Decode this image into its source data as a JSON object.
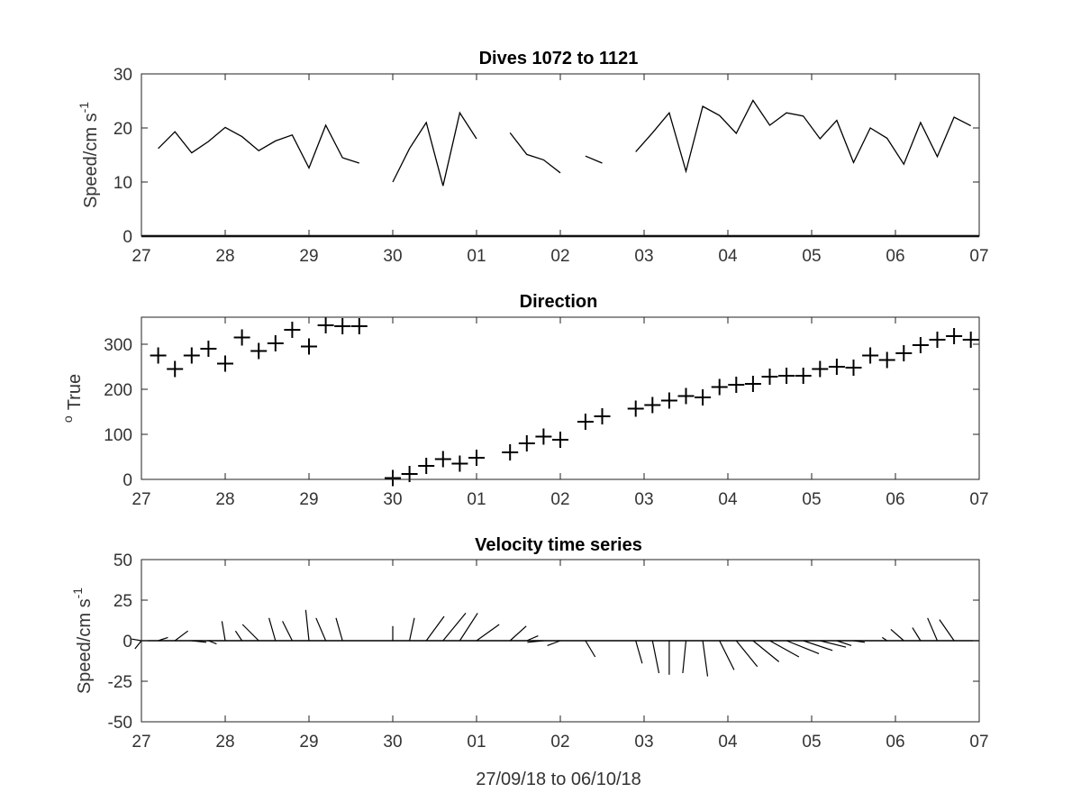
{
  "chart_data": [
    {
      "type": "line",
      "title": "Dives 1072 to 1121",
      "ylabel_main": "Speed/cm s",
      "ylabel_sup": "-1",
      "xlabel": "",
      "ylim": [
        0,
        30
      ],
      "yticks": [
        0,
        10,
        20,
        30
      ],
      "xlim": [
        0,
        10
      ],
      "xticks": [
        0,
        1,
        2,
        3,
        4,
        5,
        6,
        7,
        8,
        9,
        10
      ],
      "xtick_labels": [
        "27",
        "28",
        "29",
        "30",
        "01",
        "02",
        "03",
        "04",
        "05",
        "06",
        "07"
      ],
      "segments": [
        [
          [
            0.2,
            16.2
          ],
          [
            0.4,
            19.3
          ],
          [
            0.6,
            15.4
          ],
          [
            0.8,
            17.5
          ],
          [
            1.0,
            20.1
          ],
          [
            1.2,
            18.4
          ],
          [
            1.4,
            15.8
          ],
          [
            1.6,
            17.6
          ],
          [
            1.8,
            18.7
          ],
          [
            2.0,
            12.6
          ],
          [
            2.2,
            20.5
          ],
          [
            2.4,
            14.5
          ],
          [
            2.6,
            13.5
          ]
        ],
        [
          [
            3.0,
            10.0
          ],
          [
            3.2,
            16.2
          ],
          [
            3.4,
            21.0
          ],
          [
            3.6,
            9.3
          ],
          [
            3.8,
            22.8
          ],
          [
            4.0,
            18.0
          ]
        ],
        [
          [
            4.4,
            19.1
          ],
          [
            4.6,
            15.1
          ],
          [
            4.8,
            14.1
          ],
          [
            5.0,
            11.7
          ]
        ],
        [
          [
            5.3,
            14.8
          ],
          [
            5.5,
            13.5
          ]
        ],
        [
          [
            5.9,
            15.6
          ],
          [
            6.1,
            19.1
          ],
          [
            6.3,
            22.8
          ],
          [
            6.5,
            12.0
          ],
          [
            6.7,
            24.0
          ],
          [
            6.9,
            22.3
          ],
          [
            7.1,
            19.0
          ],
          [
            7.3,
            25.1
          ],
          [
            7.5,
            20.5
          ],
          [
            7.7,
            22.8
          ],
          [
            7.9,
            22.2
          ],
          [
            8.1,
            18.0
          ],
          [
            8.3,
            21.4
          ],
          [
            8.5,
            13.6
          ],
          [
            8.7,
            20.0
          ],
          [
            8.9,
            18.1
          ],
          [
            9.1,
            13.3
          ],
          [
            9.3,
            21.0
          ],
          [
            9.5,
            14.7
          ],
          [
            9.7,
            22.0
          ],
          [
            9.9,
            20.4
          ]
        ]
      ]
    },
    {
      "type": "scatter",
      "title": "Direction",
      "ylabel_main": "True",
      "ylabel_sup": "o",
      "xlabel": "",
      "ylim": [
        0,
        360
      ],
      "yticks": [
        0,
        100,
        200,
        300
      ],
      "xlim": [
        0,
        10
      ],
      "xticks": [
        0,
        1,
        2,
        3,
        4,
        5,
        6,
        7,
        8,
        9,
        10
      ],
      "xtick_labels": [
        "27",
        "28",
        "29",
        "30",
        "01",
        "02",
        "03",
        "04",
        "05",
        "06",
        "07"
      ],
      "marker": "+",
      "points": [
        [
          0.2,
          275
        ],
        [
          0.4,
          245
        ],
        [
          0.6,
          275
        ],
        [
          0.8,
          290
        ],
        [
          1.0,
          257
        ],
        [
          1.2,
          315
        ],
        [
          1.4,
          285
        ],
        [
          1.6,
          302
        ],
        [
          1.8,
          332
        ],
        [
          2.0,
          295
        ],
        [
          2.2,
          342
        ],
        [
          2.4,
          340
        ],
        [
          2.6,
          340
        ],
        [
          3.0,
          3
        ],
        [
          3.2,
          12
        ],
        [
          3.4,
          30
        ],
        [
          3.6,
          45
        ],
        [
          3.8,
          35
        ],
        [
          4.0,
          48
        ],
        [
          4.4,
          60
        ],
        [
          4.6,
          80
        ],
        [
          4.8,
          95
        ],
        [
          5.0,
          88
        ],
        [
          5.3,
          128
        ],
        [
          5.5,
          140
        ],
        [
          5.9,
          157
        ],
        [
          6.1,
          165
        ],
        [
          6.3,
          175
        ],
        [
          6.5,
          185
        ],
        [
          6.7,
          182
        ],
        [
          6.9,
          205
        ],
        [
          7.1,
          210
        ],
        [
          7.3,
          212
        ],
        [
          7.5,
          228
        ],
        [
          7.7,
          230
        ],
        [
          7.9,
          230
        ],
        [
          8.1,
          245
        ],
        [
          8.3,
          250
        ],
        [
          8.5,
          248
        ],
        [
          8.7,
          275
        ],
        [
          8.9,
          265
        ],
        [
          9.1,
          280
        ],
        [
          9.3,
          298
        ],
        [
          9.5,
          310
        ],
        [
          9.7,
          318
        ],
        [
          9.9,
          310
        ]
      ]
    },
    {
      "type": "quiver",
      "title": "Velocity time series",
      "ylabel_main": "Speed/cm s",
      "ylabel_sup": "-1",
      "xlabel": "27/09/18 to 06/10/18",
      "ylim": [
        -50,
        50
      ],
      "yticks": [
        -50,
        -25,
        0,
        25,
        50
      ],
      "xlim": [
        0,
        10
      ],
      "xticks": [
        0,
        1,
        2,
        3,
        4,
        5,
        6,
        7,
        8,
        9,
        10
      ],
      "xtick_labels": [
        "27",
        "28",
        "29",
        "30",
        "01",
        "02",
        "03",
        "04",
        "05",
        "06",
        "07"
      ],
      "vectors": [
        [
          0.0,
          -6,
          1
        ],
        [
          0.0,
          -4,
          -5
        ],
        [
          0.2,
          6,
          2
        ],
        [
          0.4,
          8,
          6
        ],
        [
          0.6,
          9,
          -1
        ],
        [
          0.8,
          5,
          -2
        ],
        [
          1.0,
          -2,
          12
        ],
        [
          1.2,
          -4,
          6
        ],
        [
          1.4,
          -10,
          10
        ],
        [
          1.6,
          -4,
          14
        ],
        [
          1.8,
          -6,
          12
        ],
        [
          2.0,
          -2,
          19
        ],
        [
          2.2,
          -6,
          14
        ],
        [
          2.4,
          -4,
          14
        ],
        [
          2.6,
          0,
          0
        ],
        [
          3.0,
          0,
          9
        ],
        [
          3.2,
          3,
          14
        ],
        [
          3.4,
          11,
          15
        ],
        [
          3.6,
          14,
          17
        ],
        [
          3.8,
          11,
          17
        ],
        [
          4.0,
          14,
          10
        ],
        [
          4.4,
          10,
          9
        ],
        [
          4.6,
          7,
          3
        ],
        [
          4.8,
          -10,
          -1
        ],
        [
          5.0,
          -8,
          -3
        ],
        [
          5.3,
          6,
          -10
        ],
        [
          5.5,
          0,
          0
        ],
        [
          5.9,
          4,
          -14
        ],
        [
          6.1,
          4,
          -20
        ],
        [
          6.3,
          0,
          -21
        ],
        [
          6.5,
          -2,
          -20
        ],
        [
          6.7,
          3,
          -22
        ],
        [
          6.9,
          9,
          -18
        ],
        [
          7.1,
          13,
          -16
        ],
        [
          7.3,
          16,
          -13
        ],
        [
          7.5,
          18,
          -10
        ],
        [
          7.7,
          20,
          -8
        ],
        [
          7.9,
          18,
          -6
        ],
        [
          8.1,
          16,
          -4
        ],
        [
          8.3,
          9,
          -3
        ],
        [
          8.5,
          7,
          -1
        ],
        [
          8.7,
          0,
          0
        ],
        [
          8.9,
          -3,
          2
        ],
        [
          9.1,
          -8,
          7
        ],
        [
          9.3,
          -5,
          8
        ],
        [
          9.5,
          -6,
          14
        ],
        [
          9.7,
          -9,
          13
        ],
        [
          9.9,
          0,
          0
        ]
      ]
    }
  ]
}
